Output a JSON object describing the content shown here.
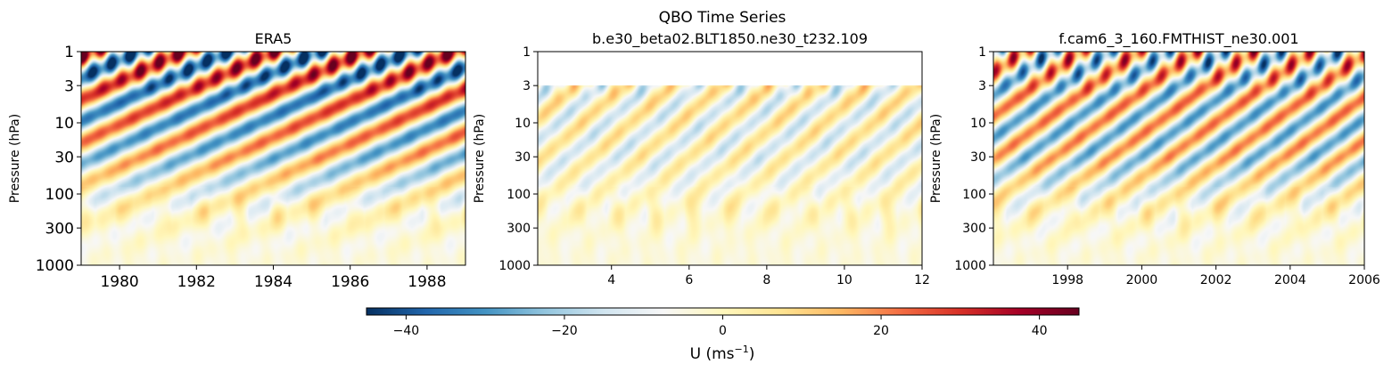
{
  "figure": {
    "suptitle_line1": "QBO Time Series",
    "colorbar": {
      "label_main": "U (ms",
      "label_exp": "−1",
      "label_close": ")",
      "vmin": -45,
      "vmax": 45,
      "ticks": [
        -40,
        -20,
        0,
        20,
        40
      ],
      "tick_labels": [
        "−40",
        "−20",
        "0",
        "20",
        "40"
      ],
      "colormap": [
        "#053061",
        "#2166ac",
        "#4393c3",
        "#92c5de",
        "#d1e5f0",
        "#f7f7f7",
        "#fff7bc",
        "#fee391",
        "#fdb863",
        "#f46d43",
        "#d73027",
        "#a50026",
        "#67001f"
      ]
    }
  },
  "chart_data": [
    {
      "type": "heatmap",
      "title": "ERA5",
      "xlabel": "",
      "ylabel": "Pressure (hPa)",
      "xlim": [
        1979.0,
        1989.0
      ],
      "x_ticks": [
        1980,
        1982,
        1984,
        1986,
        1988
      ],
      "x_tick_labels": [
        "1980",
        "1982",
        "1984",
        "1986",
        "1988"
      ],
      "ylim": [
        1000,
        1
      ],
      "y_scale": "log",
      "y_ticks": [
        1,
        3,
        10,
        30,
        100,
        300,
        1000
      ],
      "y_tick_labels": [
        "1",
        "3",
        "10",
        "30",
        "100",
        "300",
        "1000"
      ],
      "z_variable": "U",
      "qbo_period": 2.35,
      "amplitude_upper": 42,
      "amplitude_30hpa": 24,
      "field_top_hpa": 1,
      "style": "large"
    },
    {
      "type": "heatmap",
      "title": "b.e30_beta02.BLT1850.ne30_t232.109",
      "xlabel": "",
      "ylabel": "Pressure (hPa)",
      "xlim": [
        2.1,
        12.0
      ],
      "x_ticks": [
        4,
        6,
        8,
        10,
        12
      ],
      "x_tick_labels": [
        "4",
        "6",
        "8",
        "10",
        "12"
      ],
      "ylim": [
        1000,
        1
      ],
      "y_scale": "log",
      "y_ticks": [
        1,
        3,
        10,
        30,
        100,
        300,
        1000
      ],
      "y_tick_labels": [
        "1",
        "3",
        "10",
        "30",
        "100",
        "300",
        "1000"
      ],
      "z_variable": "U",
      "qbo_period": 1.25,
      "amplitude_upper": 16,
      "amplitude_30hpa": 12,
      "field_top_hpa": 3,
      "style": "small"
    },
    {
      "type": "heatmap",
      "title": "f.cam6_3_160.FMTHIST_ne30.001",
      "xlabel": "",
      "ylabel": "Pressure (hPa)",
      "xlim": [
        1996.0,
        2006.0
      ],
      "x_ticks": [
        1998,
        2000,
        2002,
        2004,
        2006
      ],
      "x_tick_labels": [
        "1998",
        "2000",
        "2002",
        "2004",
        "2006"
      ],
      "ylim": [
        1000,
        1
      ],
      "y_scale": "log",
      "y_ticks": [
        1,
        3,
        10,
        30,
        100,
        300,
        1000
      ],
      "y_tick_labels": [
        "1",
        "3",
        "10",
        "30",
        "100",
        "300",
        "1000"
      ],
      "z_variable": "U",
      "qbo_period": 1.55,
      "amplitude_upper": 30,
      "amplitude_30hpa": 24,
      "field_top_hpa": 1,
      "style": "small"
    }
  ]
}
